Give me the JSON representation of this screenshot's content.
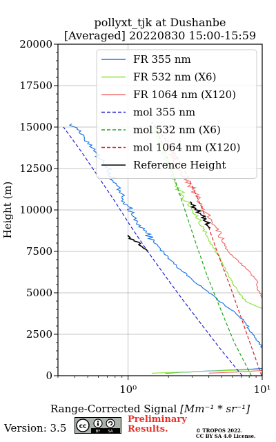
{
  "chart_data": {
    "type": "line",
    "title": [
      "pollyxt_tjk at Dushanbe",
      "[Averaged] 20220830 15:00-15:59"
    ],
    "xlabel": "Range-Corrected Signal",
    "xlabel_units": "[Mm⁻¹ * sr⁻¹]",
    "ylabel": "Height (m)",
    "xscale": "log",
    "xlim": [
      0.3,
      10
    ],
    "ylim": [
      0,
      20000
    ],
    "yticks": [
      0,
      2500,
      5000,
      7500,
      10000,
      12500,
      15000,
      17500,
      20000
    ],
    "xtick_labels": [
      "10⁰",
      "10¹"
    ],
    "grid": true,
    "legend_position": "top-right",
    "series": [
      {
        "name": "FR 355 nm",
        "color": "#1f77e4",
        "style": "solid",
        "x": [
          1.9,
          2.4,
          3.3,
          4.5,
          6.2,
          8.5,
          10.5,
          10.5,
          8.5,
          7.3,
          6.3,
          5.2,
          4.0,
          3.0,
          2.3,
          1.85,
          1.55,
          1.3,
          1.15,
          1.0,
          0.9,
          0.82,
          0.74,
          0.66,
          0.58,
          0.5,
          0.44,
          0.38
        ],
        "y": [
          150,
          200,
          250,
          300,
          350,
          400,
          450,
          1500,
          2500,
          3300,
          3800,
          4300,
          5000,
          5800,
          6600,
          7400,
          8100,
          8800,
          9500,
          10200,
          10800,
          11500,
          12200,
          12800,
          13400,
          14000,
          14600,
          15200
        ]
      },
      {
        "name": "FR 532 nm (X6)",
        "color": "#8ee53f",
        "style": "solid",
        "x": [
          1.5,
          2.2,
          3.3,
          5.0,
          7.5,
          10.5,
          10.5,
          9.0,
          7.5,
          6.5,
          5.6,
          4.9,
          4.3,
          3.8,
          3.4,
          3.0,
          2.6,
          2.3,
          2.1,
          1.95,
          1.85,
          1.7,
          1.55
        ],
        "y": [
          150,
          200,
          250,
          300,
          350,
          400,
          4000,
          4200,
          4500,
          5200,
          6000,
          7000,
          7800,
          8500,
          9300,
          10000,
          10800,
          11500,
          12300,
          12800,
          13500,
          14200,
          15000
        ]
      },
      {
        "name": "FR 1064 nm (X120)",
        "color": "#f07070",
        "style": "solid",
        "x": [
          4.0,
          5.5,
          7.5,
          9.5,
          10.5,
          10.5,
          9.5,
          9.0,
          7.5,
          6.5,
          5.5,
          5.0,
          4.5,
          4.0,
          3.6,
          3.2,
          2.9,
          2.6,
          2.3,
          2.1,
          2.0
        ],
        "y": [
          150,
          200,
          250,
          300,
          350,
          4500,
          5000,
          5800,
          6500,
          7000,
          7600,
          8200,
          9000,
          9500,
          10200,
          11000,
          11500,
          12000,
          12500,
          13500,
          14200
        ]
      },
      {
        "name": "mol 355 nm",
        "color": "#1f1fd1",
        "style": "dashed",
        "x": [
          7.1,
          5.0,
          3.6,
          2.6,
          1.9,
          1.4,
          1.05,
          0.8,
          0.6,
          0.45,
          0.33
        ],
        "y": [
          0,
          1500,
          3000,
          4500,
          6000,
          7500,
          9000,
          10500,
          12000,
          13500,
          15000
        ]
      },
      {
        "name": "mol 532 nm (X6)",
        "color": "#1ea51e",
        "style": "dashed",
        "x": [
          8.3,
          6.2,
          4.9,
          3.9,
          3.2,
          2.65,
          2.2,
          1.9,
          1.6
        ],
        "y": [
          0,
          2000,
          4000,
          6000,
          8000,
          10000,
          12000,
          13500,
          15000
        ]
      },
      {
        "name": "mol 1064 nm (X120)",
        "color": "#e02020",
        "style": "dashed",
        "x": [
          9.9,
          7.7,
          6.0,
          4.6,
          3.6,
          2.8,
          2.2,
          1.8,
          1.5
        ],
        "y": [
          0,
          2500,
          5000,
          7500,
          10000,
          12000,
          13500,
          14500,
          15300
        ]
      },
      {
        "name": "Reference Height",
        "color": "#000000",
        "style": "solid",
        "x": [
          1.0,
          1.1,
          1.2,
          1.3,
          1.4
        ],
        "y": [
          8500,
          8200,
          7900,
          7700,
          7500
        ]
      },
      {
        "name": "",
        "color": "#000000",
        "style": "solid",
        "x": [
          2.9,
          3.2,
          3.5,
          3.8,
          4.1
        ],
        "y": [
          10500,
          10100,
          9700,
          9300,
          8900
        ]
      }
    ]
  },
  "footer": {
    "version": "Version: 3.5",
    "preliminary": [
      "Preliminary",
      "Results."
    ],
    "copyright": [
      "© TROPOS 2022.",
      "CC BY SA 4.0 License."
    ],
    "license_badge": [
      "BY",
      "SA"
    ]
  }
}
